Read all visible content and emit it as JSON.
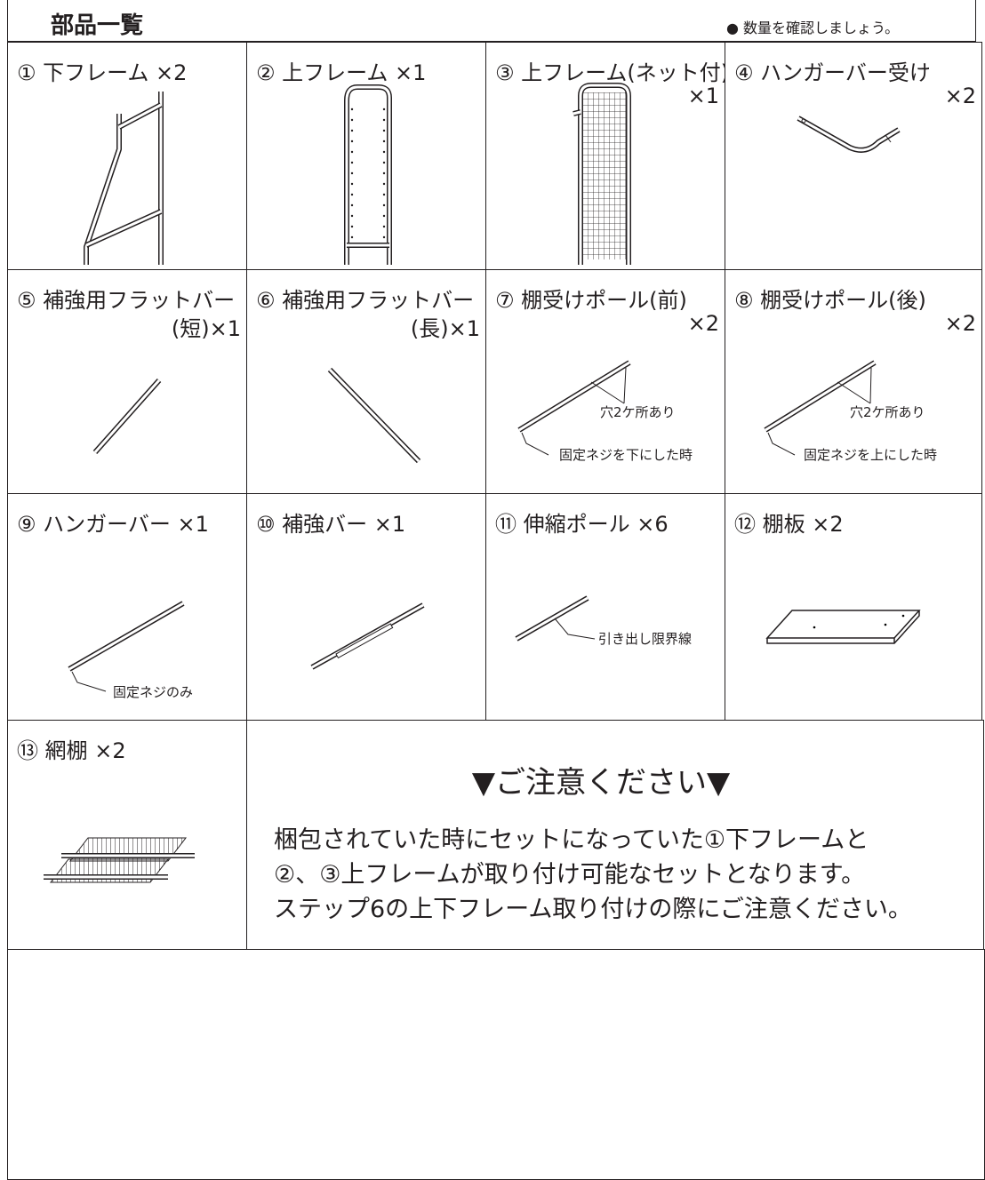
{
  "header": {
    "title": "部品一覧",
    "note": "● 数量を確認しましょう。"
  },
  "parts": [
    {
      "label": "① 下フレーム ×2"
    },
    {
      "label": "② 上フレーム ×1"
    },
    {
      "label": "③ 上フレーム(ネット付)",
      "sub": "×1"
    },
    {
      "label": "④ ハンガーバー受け",
      "sub": "×2"
    },
    {
      "label": "⑤ 補強用フラットバー",
      "sub": "(短)×1"
    },
    {
      "label": "⑥ 補強用フラットバー",
      "sub": "(長)×1"
    },
    {
      "label": "⑦ 棚受けポール(前)",
      "sub": "×2",
      "notes": [
        "穴2ケ所あり",
        "固定ネジを下にした時"
      ]
    },
    {
      "label": "⑧ 棚受けポール(後)",
      "sub": "×2",
      "notes": [
        "穴2ケ所あり",
        "固定ネジを上にした時"
      ]
    },
    {
      "label": "⑨ ハンガーバー ×1",
      "notes": [
        "固定ネジのみ"
      ]
    },
    {
      "label": "⑩ 補強バー ×1"
    },
    {
      "label": "⑪ 伸縮ポール ×6",
      "notes": [
        "引き出し限界線"
      ]
    },
    {
      "label": "⑫ 棚板 ×2"
    },
    {
      "label": "⑬ 網棚 ×2"
    }
  ],
  "notice": {
    "title": "▼ご注意ください▼",
    "lines": [
      "梱包されていた時にセットになっていた①下フレームと",
      "②、③上フレームが取り付け可能なセットとなります。",
      "ステップ6の上下フレーム取り付けの際にご注意ください。"
    ]
  }
}
